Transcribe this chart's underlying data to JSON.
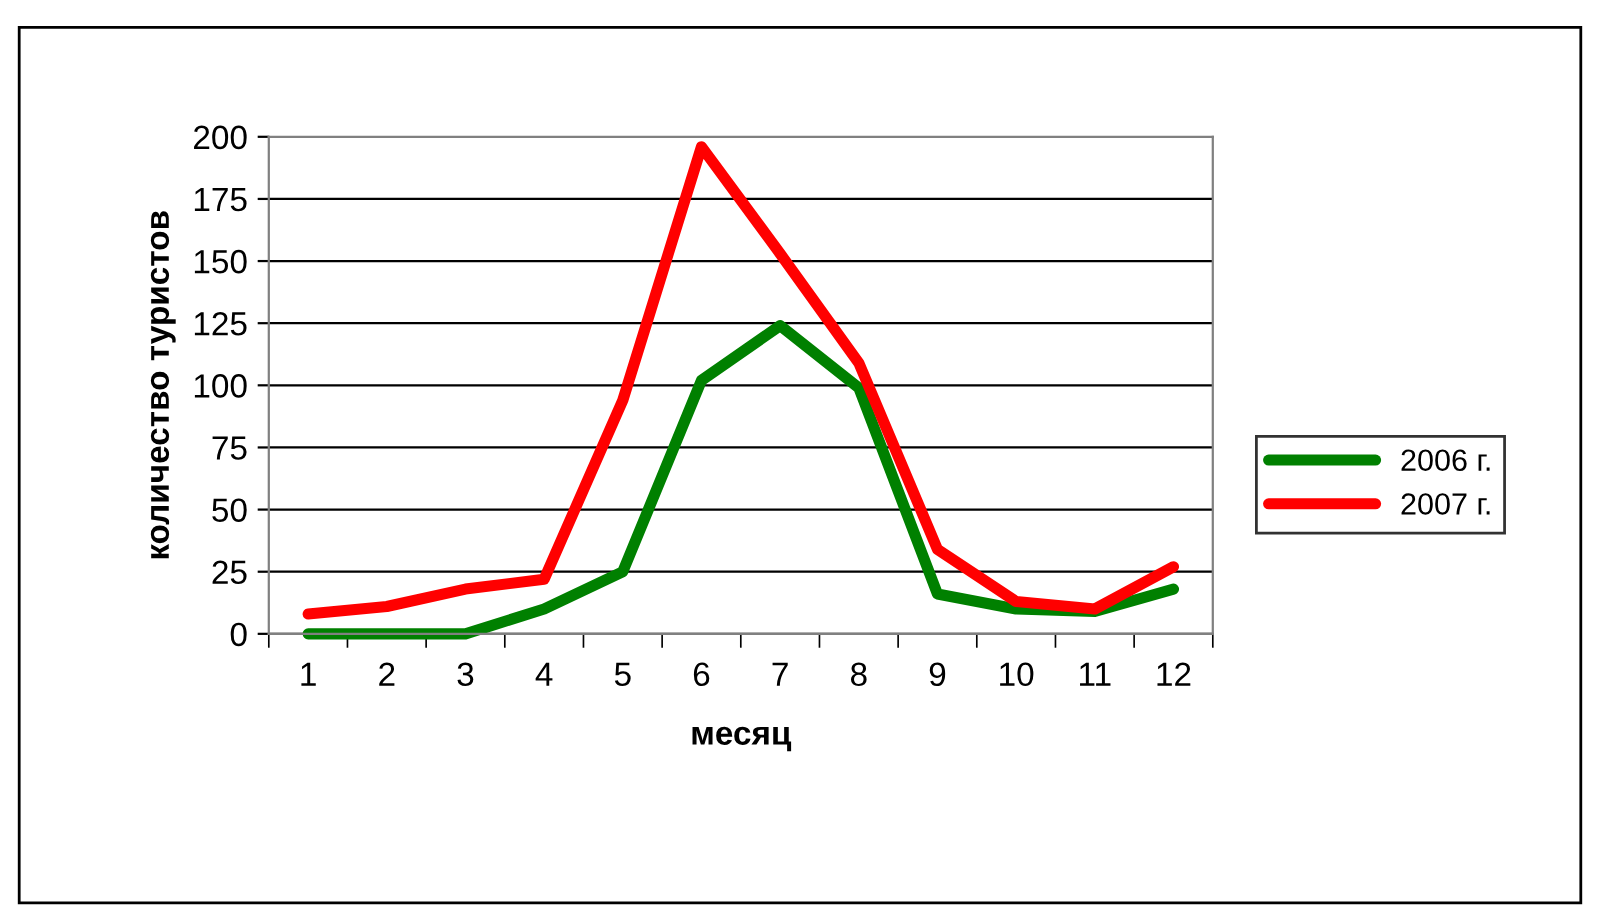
{
  "chart_data": {
    "type": "line",
    "xlabel": "месяц",
    "ylabel": "количество туристов",
    "categories": [
      "1",
      "2",
      "3",
      "4",
      "5",
      "6",
      "7",
      "8",
      "9",
      "10",
      "11",
      "12"
    ],
    "series": [
      {
        "name": "2006 г.",
        "color": "#008000",
        "values": [
          0,
          0,
          0,
          10,
          25,
          102,
          124,
          99,
          16,
          10,
          9,
          18
        ]
      },
      {
        "name": "2007 г.",
        "color": "#ff0000",
        "values": [
          8,
          11,
          18,
          22,
          94,
          196,
          153,
          109,
          34,
          13,
          10,
          27
        ]
      }
    ],
    "ylim": [
      0,
      200
    ],
    "yticks": [
      0,
      25,
      50,
      75,
      100,
      125,
      150,
      175,
      200
    ],
    "grid": "y",
    "legend": "right",
    "marker": "none",
    "line_style": "solid"
  }
}
